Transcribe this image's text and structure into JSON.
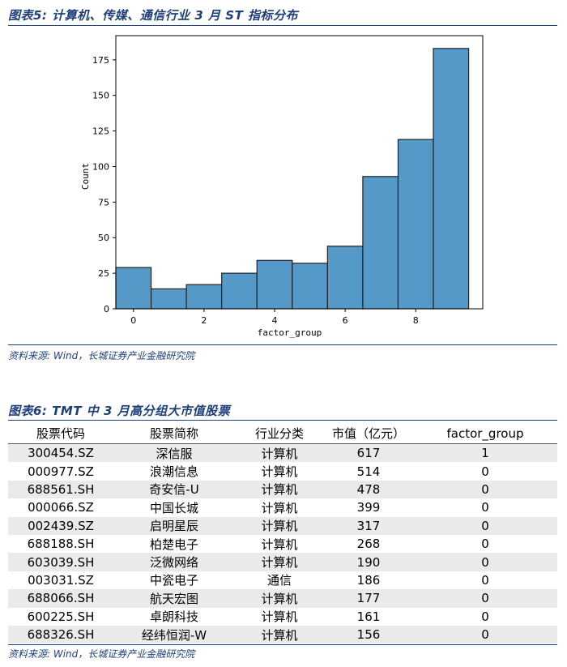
{
  "figure5": {
    "title": "图表5:  计算机、传媒、通信行业 3 月 ST 指标分布",
    "source": "资料来源:  Wind，长城证券产业金融研究院"
  },
  "chart_data": {
    "type": "bar",
    "title": "",
    "xlabel": "factor_group",
    "ylabel": "Count",
    "x_ticks": [
      "0",
      "2",
      "4",
      "6",
      "8"
    ],
    "y_ticks": [
      "0",
      "25",
      "50",
      "75",
      "100",
      "125",
      "150",
      "175"
    ],
    "ylim": [
      0,
      192
    ],
    "xlim": [
      -0.5,
      9.9
    ],
    "bin_edges": [
      -0.5,
      0.5,
      1.5,
      2.5,
      3.5,
      4.5,
      5.5,
      6.5,
      7.5,
      8.5,
      9.5
    ],
    "values": [
      29,
      14,
      17,
      25,
      34,
      32,
      44,
      93,
      119,
      183
    ],
    "bar_color": "#5599c8",
    "grid": false
  },
  "figure6": {
    "title": "图表6:  TMT 中 3 月高分组大市值股票",
    "source": "资料来源:  Wind，长城证券产业金融研究院",
    "headers": [
      "股票代码",
      "股票简称",
      "行业分类",
      "市值（亿元）",
      "factor_group"
    ],
    "rows": [
      [
        "300454.SZ",
        "深信服",
        "计算机",
        "617",
        "1"
      ],
      [
        "000977.SZ",
        "浪潮信息",
        "计算机",
        "514",
        "0"
      ],
      [
        "688561.SH",
        "奇安信-U",
        "计算机",
        "478",
        "0"
      ],
      [
        "000066.SZ",
        "中国长城",
        "计算机",
        "399",
        "0"
      ],
      [
        "002439.SZ",
        "启明星辰",
        "计算机",
        "317",
        "0"
      ],
      [
        "688188.SH",
        "柏楚电子",
        "计算机",
        "268",
        "0"
      ],
      [
        "603039.SH",
        "泛微网络",
        "计算机",
        "190",
        "0"
      ],
      [
        "003031.SZ",
        "中瓷电子",
        "通信",
        "186",
        "0"
      ],
      [
        "688066.SH",
        "航天宏图",
        "计算机",
        "177",
        "0"
      ],
      [
        "600225.SH",
        "卓朗科技",
        "计算机",
        "161",
        "0"
      ],
      [
        "688326.SH",
        "经纬恒润-W",
        "计算机",
        "156",
        "0"
      ]
    ]
  }
}
